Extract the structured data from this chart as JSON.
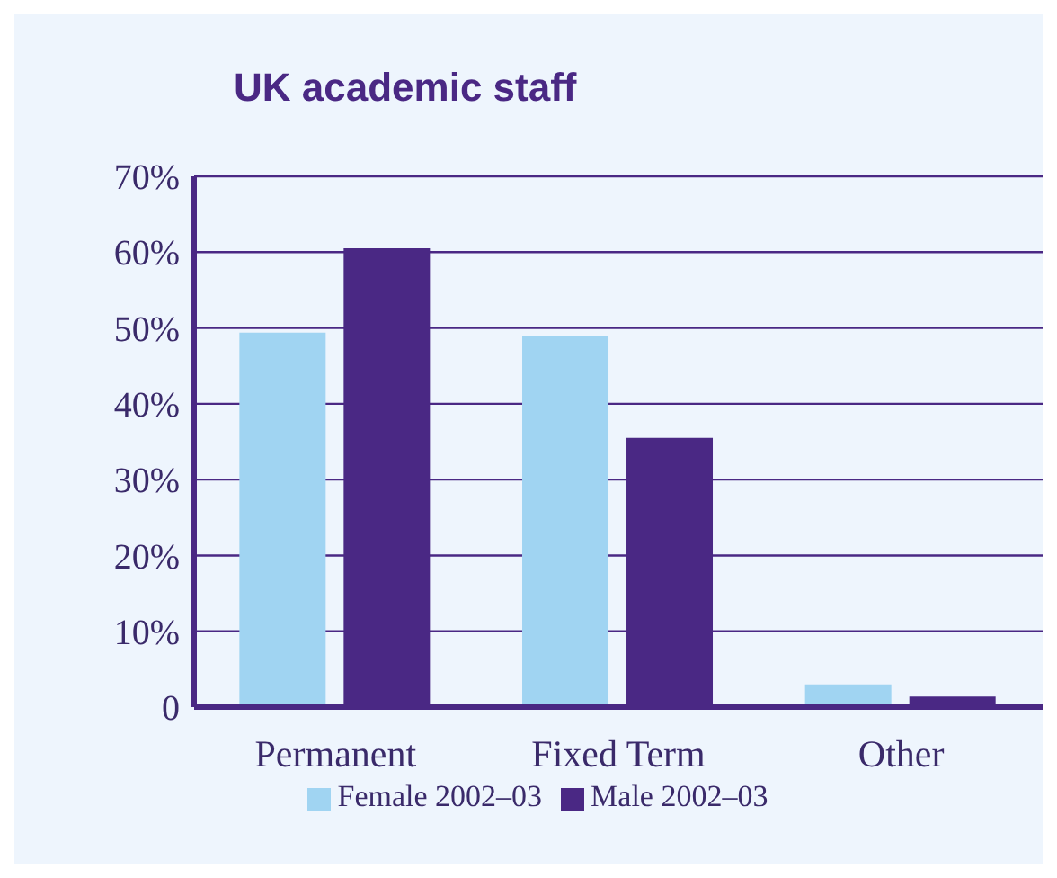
{
  "chart_data": {
    "type": "bar",
    "title": "UK academic staff",
    "categories": [
      "Permanent",
      "Fixed Term",
      "Other"
    ],
    "series": [
      {
        "name": "Female 2002–03",
        "color": "#a0d4f2",
        "values": [
          49.4,
          49,
          3
        ]
      },
      {
        "name": "Male 2002–03",
        "color": "#4a2884",
        "values": [
          60.5,
          35.5,
          1.4
        ]
      }
    ],
    "ylim": [
      0,
      70
    ],
    "yticks": [
      {
        "value": 0,
        "label": "0"
      },
      {
        "value": 10,
        "label": "10%"
      },
      {
        "value": 20,
        "label": "20%"
      },
      {
        "value": 30,
        "label": "30%"
      },
      {
        "value": 40,
        "label": "40%"
      },
      {
        "value": 50,
        "label": "50%"
      },
      {
        "value": 60,
        "label": "60%"
      },
      {
        "value": 70,
        "label": "70%"
      }
    ],
    "grid": "y",
    "legend": "bottom"
  }
}
